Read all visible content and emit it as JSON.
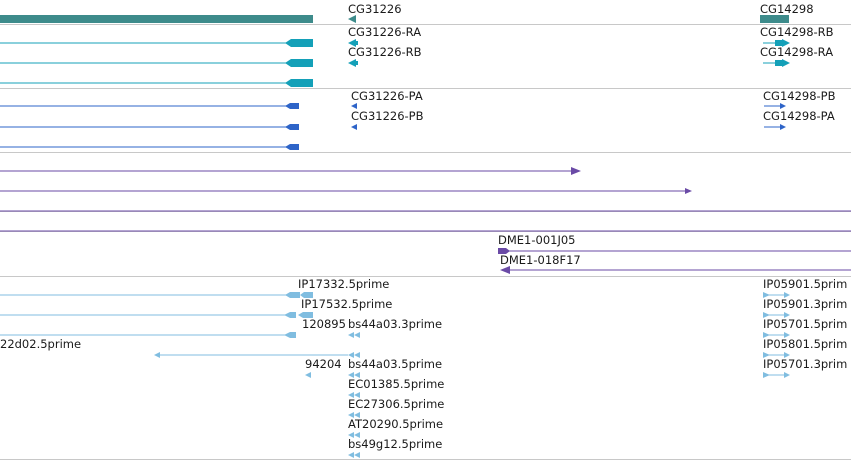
{
  "tracks": [
    {
      "name": "gene",
      "color": "#3d8b8b",
      "features": [
        {
          "label": "CG31226",
          "strand": "-"
        },
        {
          "label": "CG14298",
          "strand": "+"
        }
      ]
    },
    {
      "name": "transcript",
      "color": "#14a0b8",
      "features": [
        {
          "label": "CG31226-RA",
          "strand": "-"
        },
        {
          "label": "CG31226-RB",
          "strand": "-"
        },
        {
          "label": "CG14298-RB",
          "strand": "+"
        },
        {
          "label": "CG14298-RA",
          "strand": "+"
        }
      ]
    },
    {
      "name": "protein",
      "color": "#2e64c8",
      "features": [
        {
          "label": "CG31226-PA",
          "strand": "-"
        },
        {
          "label": "CG31226-PB",
          "strand": "-"
        },
        {
          "label": "CG14298-PB",
          "strand": "+"
        },
        {
          "label": "CG14298-PA",
          "strand": "+"
        }
      ]
    },
    {
      "name": "clone",
      "color": "#6a4aa6",
      "features": [
        {
          "label": "DME1-001J05",
          "strand": "+"
        },
        {
          "label": "DME1-018F17",
          "strand": "-"
        }
      ]
    },
    {
      "name": "est",
      "color": "#80bde0",
      "features": [
        {
          "label": "IP17332.5prime",
          "strand": "-"
        },
        {
          "label": "IP17532.5prime",
          "strand": "-"
        },
        {
          "label": "120895",
          "strand": "-"
        },
        {
          "label": "bs44a03.3prime",
          "strand": "-"
        },
        {
          "label": "22d02.5prime",
          "strand": "-"
        },
        {
          "label": "94204",
          "strand": "-"
        },
        {
          "label": "bs44a03.5prime",
          "strand": "-"
        },
        {
          "label": "EC01385.5prime",
          "strand": "-"
        },
        {
          "label": "EC27306.5prime",
          "strand": "-"
        },
        {
          "label": "AT20290.5prime",
          "strand": "-"
        },
        {
          "label": "bs49g12.5prime",
          "strand": "-"
        },
        {
          "label": "IP05901.5prim",
          "strand": "+"
        },
        {
          "label": "IP05901.3prim",
          "strand": "+"
        },
        {
          "label": "IP05701.5prim",
          "strand": "+"
        },
        {
          "label": "IP05801.5prim",
          "strand": "+"
        },
        {
          "label": "IP05701.3prim",
          "strand": "+"
        }
      ]
    }
  ]
}
